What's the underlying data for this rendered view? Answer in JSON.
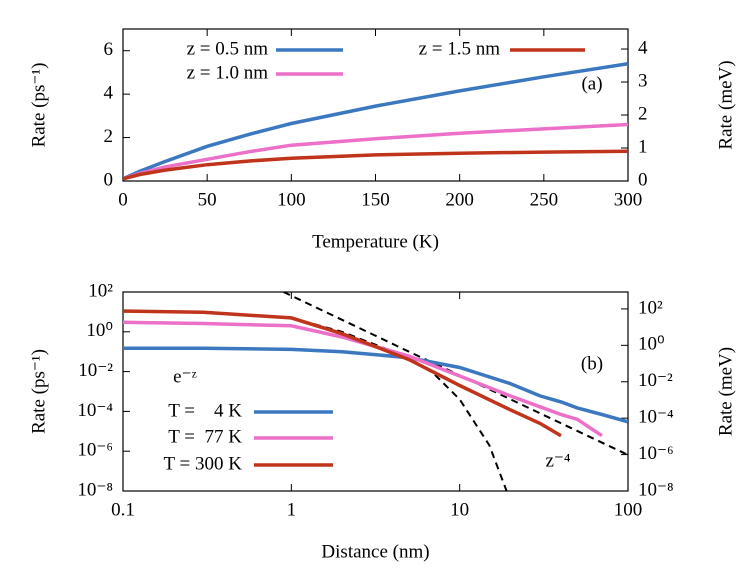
{
  "chart_data": [
    {
      "type": "line",
      "xlabel": "Temperature (K)",
      "ylabel": "Rate (ps⁻¹)",
      "y2label": "Rate (meV)",
      "annotation": "(a)",
      "x": [
        0,
        10,
        25,
        50,
        75,
        100,
        150,
        200,
        250,
        300
      ],
      "series": [
        {
          "name": "z = 0.5 nm",
          "color": "#3c78c0",
          "values": [
            0.1,
            0.45,
            0.9,
            1.6,
            2.15,
            2.65,
            3.45,
            4.15,
            4.8,
            5.4
          ]
        },
        {
          "name": "z = 1.0 nm",
          "color": "#ec6fc8",
          "values": [
            0.1,
            0.35,
            0.65,
            1.0,
            1.35,
            1.65,
            1.95,
            2.2,
            2.4,
            2.6
          ]
        },
        {
          "name": "z = 1.5 nm",
          "color": "#c0341c",
          "values": [
            0.1,
            0.3,
            0.5,
            0.75,
            0.92,
            1.05,
            1.2,
            1.28,
            1.33,
            1.37
          ]
        }
      ],
      "xlim": [
        0,
        300
      ],
      "xticks": [
        0,
        50,
        100,
        150,
        200,
        250,
        300
      ],
      "ylim": [
        0,
        7
      ],
      "yticks": [
        0,
        2,
        4,
        6
      ],
      "y2lim": [
        0,
        4.607
      ],
      "y2ticks": [
        0,
        1,
        2,
        3,
        4
      ]
    },
    {
      "type": "line",
      "log_x": true,
      "log_y": true,
      "xlabel": "Distance (nm)",
      "ylabel": "Rate (ps⁻¹)",
      "y2label": "Rate (meV)",
      "annotation": "(b)",
      "x": [
        0.1,
        0.3,
        1,
        2,
        5,
        10,
        20,
        30,
        40,
        50,
        70,
        100
      ],
      "series": [
        {
          "name": "T =    4 K",
          "color": "#3c78c0",
          "values": [
            0.15,
            0.15,
            0.13,
            0.1,
            0.05,
            0.016,
            0.0025,
            0.0006,
            0.0003,
            0.00015,
            7e-05,
            3e-05
          ]
        },
        {
          "name": "T =  77 K",
          "color": "#ec6fc8",
          "values": [
            3,
            2.6,
            2,
            0.55,
            0.06,
            0.006,
            0.0006,
            0.00017,
            7e-05,
            4e-05,
            6e-06,
            null
          ]
        },
        {
          "name": "T = 300 K",
          "color": "#c0341c",
          "values": [
            11,
            9.5,
            5,
            0.8,
            0.04,
            0.002,
            0.00012,
            2.5e-05,
            6e-06,
            null,
            null,
            null
          ]
        }
      ],
      "reference_curves": [
        {
          "label": "e⁻ᶻ",
          "color": "#000000",
          "x": [
            0.1,
            0.3,
            1,
            2,
            5,
            7,
            10,
            15,
            19
          ],
          "values": [
            11,
            9.5,
            5,
            1,
            0.05,
            0.008,
            0.0004,
            2e-06,
            1e-08
          ]
        },
        {
          "label": "z⁻⁴",
          "color": "#000000",
          "x": [
            0.9,
            1,
            2,
            5,
            10,
            30,
            100
          ],
          "values": [
            100,
            65,
            4,
            0.1,
            0.0065,
            8e-05,
            6.5e-07
          ]
        }
      ],
      "xlim": [
        0.1,
        100
      ],
      "xticks": [
        0.1,
        1,
        10,
        100
      ],
      "ylim": [
        1e-08,
        100
      ],
      "yticks": [
        {
          "value": 1e-08,
          "label": "10⁻⁸"
        },
        {
          "value": 1e-06,
          "label": "10⁻⁶"
        },
        {
          "value": 0.0001,
          "label": "10⁻⁴"
        },
        {
          "value": 0.01,
          "label": "10⁻²"
        },
        {
          "value": 1,
          "label": "10⁰"
        },
        {
          "value": 100,
          "label": "10²"
        }
      ],
      "y2lim": [
        1e-08,
        850
      ],
      "y2ticks": [
        {
          "value": 1e-08,
          "label": "10⁻⁸"
        },
        {
          "value": 1e-06,
          "label": "10⁻⁶"
        },
        {
          "value": 0.0001,
          "label": "10⁻⁴"
        },
        {
          "value": 0.01,
          "label": "10⁻²"
        },
        {
          "value": 1,
          "label": "10⁰"
        },
        {
          "value": 100,
          "label": "10²"
        }
      ]
    }
  ]
}
